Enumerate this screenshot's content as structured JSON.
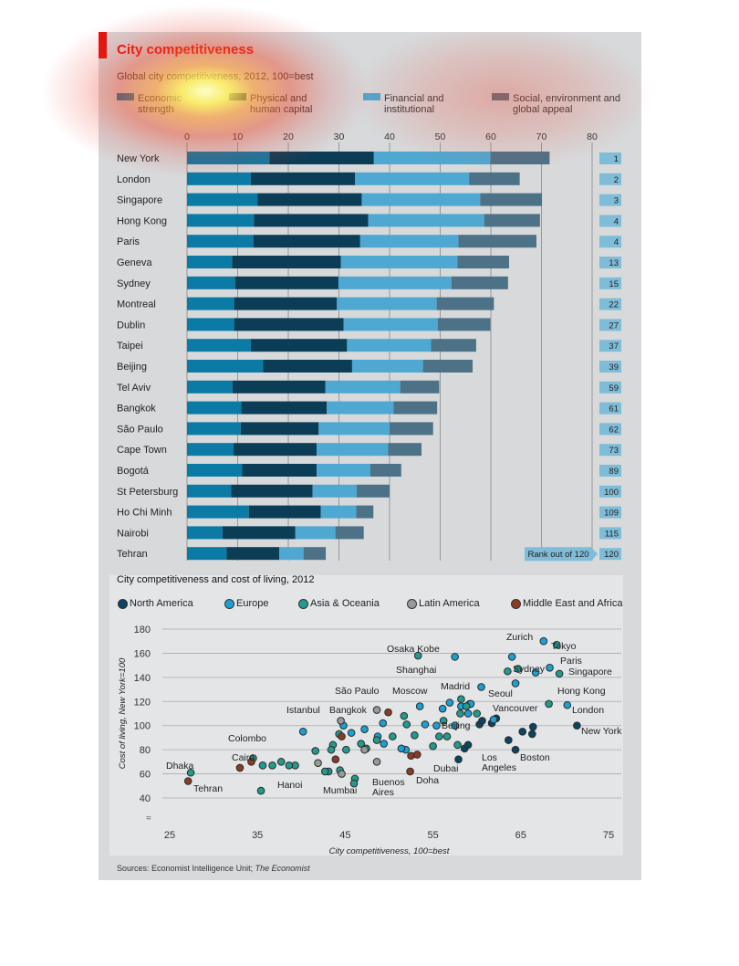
{
  "header": {
    "title": "City competitiveness",
    "subtitle": "Global city competitiveness, 2012, 100=best"
  },
  "legend1": [
    {
      "label": "Economic strength",
      "color": "#0b7aa5"
    },
    {
      "label": "Physical and human capital",
      "color": "#0b3d57"
    },
    {
      "label": "Financial and institutional",
      "color": "#4ea8d2"
    },
    {
      "label": "Social, environment and global appeal",
      "color": "#4d7187"
    }
  ],
  "rank_label": "Rank out of 120",
  "chart_data": [
    {
      "type": "bar",
      "orientation": "horizontal-stacked",
      "title": "City competitiveness",
      "subtitle": "Global city competitiveness, 2012, 100=best",
      "xlim": [
        0,
        80
      ],
      "xticks": [
        0,
        10,
        20,
        30,
        40,
        50,
        60,
        70,
        80
      ],
      "categories": [
        "New York",
        "London",
        "Singapore",
        "Hong Kong",
        "Paris",
        "Geneva",
        "Sydney",
        "Montreal",
        "Dublin",
        "Taipei",
        "Beijing",
        "Tel Aviv",
        "Bangkok",
        "São Paulo",
        "Cape Town",
        "Bogotá",
        "St Petersburg",
        "Ho Chi Minh",
        "Nairobi",
        "Tehran"
      ],
      "series": [
        {
          "name": "Economic strength",
          "values": [
            16.3,
            12.6,
            13.9,
            13.2,
            13.1,
            8.9,
            9.5,
            9.3,
            9.3,
            12.6,
            15.0,
            9.0,
            10.7,
            10.6,
            9.2,
            10.9,
            8.7,
            12.2,
            7.0,
            7.8
          ]
        },
        {
          "name": "Physical and human capital",
          "values": [
            20.6,
            20.6,
            20.6,
            22.6,
            21.1,
            21.5,
            20.4,
            20.3,
            21.6,
            19.0,
            17.6,
            18.3,
            16.9,
            15.4,
            16.4,
            14.7,
            16.1,
            14.2,
            14.4,
            10.4
          ]
        },
        {
          "name": "Financial and institutional",
          "values": [
            23.0,
            22.5,
            23.4,
            22.9,
            19.4,
            23.0,
            22.3,
            19.7,
            18.6,
            16.6,
            14.0,
            14.8,
            13.2,
            14.0,
            14.1,
            10.6,
            8.7,
            7.0,
            7.9,
            4.8
          ]
        },
        {
          "name": "Social, environment and global appeal",
          "values": [
            11.7,
            10.0,
            12.2,
            11.0,
            15.4,
            10.2,
            11.2,
            11.3,
            10.4,
            8.9,
            9.8,
            7.7,
            8.6,
            8.6,
            6.6,
            6.1,
            6.5,
            3.4,
            5.6,
            4.4
          ]
        }
      ],
      "ranks": [
        "1",
        "2",
        "3",
        "4",
        "4",
        "13",
        "15",
        "22",
        "27",
        "37",
        "39",
        "59",
        "61",
        "62",
        "73",
        "89",
        "100",
        "109",
        "115",
        "120"
      ],
      "legend": "top",
      "grid": true
    },
    {
      "type": "scatter",
      "title": "City competitiveness and cost of living, 2012",
      "xlabel": "City competitiveness, 100=best",
      "ylabel": "Cost of living, New York=100",
      "xlim": [
        25,
        75
      ],
      "ylim": [
        40,
        180
      ],
      "xticks": [
        25,
        35,
        45,
        55,
        65,
        75
      ],
      "yticks": [
        40,
        60,
        80,
        100,
        120,
        140,
        160,
        180
      ],
      "legend": "top",
      "grid": true,
      "series": [
        {
          "name": "North America",
          "color": "#0a4561",
          "points": [
            [
              71.4,
              100
            ],
            [
              58.6,
              81
            ],
            [
              59.0,
              84
            ],
            [
              57.9,
              72
            ],
            [
              60.3,
              101
            ],
            [
              61.7,
              102
            ],
            [
              62.2,
              106
            ],
            [
              63.6,
              88
            ],
            [
              64.4,
              80
            ],
            [
              65.2,
              95
            ],
            [
              66.3,
              93
            ],
            [
              66.4,
              99
            ],
            [
              60.6,
              104
            ]
          ]
        },
        {
          "name": "Europe",
          "color": "#1aa0d4",
          "points": [
            [
              67.6,
              170
            ],
            [
              66.7,
              144
            ],
            [
              64.0,
              157
            ],
            [
              64.4,
              135
            ],
            [
              61.9,
              105
            ],
            [
              59.0,
              110
            ],
            [
              58.2,
              116
            ],
            [
              57.5,
              100
            ],
            [
              56.1,
              114
            ],
            [
              55.4,
              100
            ],
            [
              54.1,
              101
            ],
            [
              51.9,
              80
            ],
            [
              51.4,
              81
            ],
            [
              49.4,
              85
            ],
            [
              49.3,
              102
            ],
            [
              48.7,
              91
            ],
            [
              47.2,
              97
            ],
            [
              45.7,
              94
            ],
            [
              44.8,
              100
            ],
            [
              40.2,
              95
            ],
            [
              53.5,
              116
            ],
            [
              57.5,
              157
            ],
            [
              60.5,
              132
            ],
            [
              59.2,
              118
            ],
            [
              59.3,
              118
            ],
            [
              68.3,
              148
            ],
            [
              70.3,
              117
            ],
            [
              56.9,
              119
            ]
          ]
        },
        {
          "name": "Asia & Oceania",
          "color": "#229a8e",
          "points": [
            [
              69.1,
              167
            ],
            [
              69.4,
              143
            ],
            [
              64.7,
              147
            ],
            [
              63.5,
              145
            ],
            [
              68.2,
              118
            ],
            [
              58.2,
              122
            ],
            [
              58.8,
              116
            ],
            [
              58.1,
              110
            ],
            [
              60.0,
              110
            ],
            [
              56.2,
              104
            ],
            [
              57.8,
              84
            ],
            [
              56.6,
              91
            ],
            [
              55.7,
              91
            ],
            [
              55.0,
              83
            ],
            [
              53.3,
              158
            ],
            [
              52.9,
              92
            ],
            [
              52.0,
              101
            ],
            [
              51.7,
              108
            ],
            [
              50.4,
              91
            ],
            [
              48.6,
              88
            ],
            [
              47.4,
              81
            ],
            [
              46.8,
              85
            ],
            [
              45.1,
              80
            ],
            [
              44.3,
              93
            ],
            [
              43.6,
              84
            ],
            [
              43.4,
              80
            ],
            [
              41.6,
              79
            ],
            [
              44.4,
              63
            ],
            [
              43.1,
              62
            ],
            [
              42.7,
              62
            ],
            [
              46.1,
              56
            ],
            [
              46.0,
              52
            ],
            [
              39.3,
              67
            ],
            [
              38.6,
              67
            ],
            [
              37.7,
              70
            ],
            [
              36.7,
              67
            ],
            [
              35.6,
              67
            ],
            [
              34.5,
              73
            ],
            [
              35.4,
              46
            ],
            [
              27.4,
              61
            ]
          ]
        },
        {
          "name": "Latin America",
          "color": "#9a9a9a",
          "points": [
            [
              48.6,
              113
            ],
            [
              44.5,
              104
            ],
            [
              48.6,
              70
            ],
            [
              44.6,
              60
            ],
            [
              41.9,
              69
            ],
            [
              47.2,
              80
            ]
          ]
        },
        {
          "name": "Middle East and Africa",
          "color": "#8b3a23",
          "points": [
            [
              49.9,
              111
            ],
            [
              44.6,
              91
            ],
            [
              52.5,
              75
            ],
            [
              52.4,
              62
            ],
            [
              53.2,
              76
            ],
            [
              43.9,
              72
            ],
            [
              34.3,
              70
            ],
            [
              33.0,
              65
            ],
            [
              27.1,
              54
            ]
          ]
        }
      ],
      "annotations": [
        "Zurich",
        "Tokyo",
        "Osaka Kobe",
        "Paris",
        "Singapore",
        "Shanghai",
        "Sydney",
        "Madrid",
        "Seoul",
        "Hong Kong",
        "São Paulo",
        "Moscow",
        "Vancouver",
        "London",
        "Istanbul",
        "Bangkok",
        "Beijing",
        "New York",
        "Colombo",
        "Boston",
        "Los Angeles",
        "Cairo",
        "Dubai",
        "Dhaka",
        "Hanoi",
        "Doha",
        "Buenos Aires",
        "Tehran",
        "Mumbai"
      ]
    }
  ],
  "chart2": {
    "title": "City competitiveness and cost of living, 2012",
    "xlabel": "City competitiveness, 100=best",
    "ylabel": "Cost of living, New York=100",
    "labels": [
      {
        "text": "Zurich"
      },
      {
        "text": "Tokyo"
      },
      {
        "text": "Osaka Kobe"
      },
      {
        "text": "Paris"
      },
      {
        "text": "Singapore"
      },
      {
        "text": "Shanghai"
      },
      {
        "text": "Sydney"
      },
      {
        "text": "Madrid"
      },
      {
        "text": "Seoul"
      },
      {
        "text": "Hong Kong"
      },
      {
        "text": "São Paulo"
      },
      {
        "text": "Moscow"
      },
      {
        "text": "Vancouver"
      },
      {
        "text": "London"
      },
      {
        "text": "Istanbul"
      },
      {
        "text": "Bangkok"
      },
      {
        "text": "Beijing"
      },
      {
        "text": "New York"
      },
      {
        "text": "Colombo"
      },
      {
        "text": "Boston"
      },
      {
        "text": "Los Angeles"
      },
      {
        "text": "Cairo"
      },
      {
        "text": "Dubai"
      },
      {
        "text": "Dhaka"
      },
      {
        "text": "Hanoi"
      },
      {
        "text": "Doha"
      },
      {
        "text": "Buenos Aires"
      },
      {
        "text": "Tehran"
      },
      {
        "text": "Mumbai"
      }
    ]
  },
  "source": {
    "prefix": "Sources: Economist Intelligence Unit; ",
    "italic": "The Economist"
  }
}
